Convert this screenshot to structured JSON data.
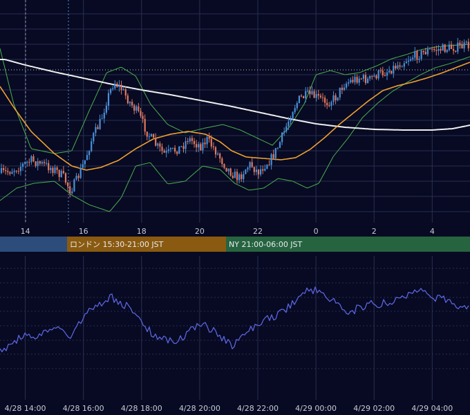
{
  "colors": {
    "background": "#070a22",
    "grid": "#2a2f52",
    "bullish_candle": "#4a8fd9",
    "bearish_candle": "#e2785e",
    "long_ma": "#f0f0f0",
    "mid_ma": "#f0a030",
    "bollinger": "#4caf50",
    "indicator_line": "#5b64e0",
    "session_asia": "#2c4d7c",
    "session_london": "#8a5a10",
    "session_ny": "#266440"
  },
  "sessions": [
    {
      "label": "",
      "color": "#2c4d7c"
    },
    {
      "label": "ロンドン 15:30-21:00 JST",
      "color": "#8a5a10"
    },
    {
      "label": "NY 21:00-06:00 JST",
      "color": "#266440"
    }
  ],
  "chart_data": [
    {
      "type": "candlestick",
      "x_tick_labels": [
        "14",
        "16",
        "18",
        "20",
        "22",
        "0",
        "2",
        "4"
      ],
      "x_ticks_hours": [
        14,
        16,
        18,
        20,
        22,
        24,
        26,
        28
      ],
      "x_range_hours": [
        13.13,
        29.3
      ],
      "y_range": [
        0,
        100
      ],
      "overlays": [
        "long moving average",
        "mid moving average",
        "bollinger bands"
      ],
      "path_anchors": [
        [
          13.3,
          250
        ],
        [
          13.8,
          241
        ],
        [
          14.2,
          232
        ],
        [
          14.7,
          239
        ],
        [
          15.0,
          245
        ],
        [
          15.3,
          255
        ],
        [
          15.55,
          275
        ],
        [
          15.75,
          262
        ],
        [
          16.05,
          232
        ],
        [
          16.3,
          200
        ],
        [
          16.6,
          175
        ],
        [
          16.8,
          145
        ],
        [
          17.05,
          118
        ],
        [
          17.3,
          128
        ],
        [
          17.6,
          148
        ],
        [
          17.9,
          165
        ],
        [
          18.2,
          192
        ],
        [
          18.5,
          210
        ],
        [
          18.8,
          223
        ],
        [
          19.1,
          218
        ],
        [
          19.4,
          212
        ],
        [
          19.6,
          200
        ],
        [
          19.85,
          207
        ],
        [
          20.05,
          211
        ],
        [
          20.25,
          202
        ],
        [
          20.5,
          215
        ],
        [
          20.7,
          228
        ],
        [
          20.9,
          241
        ],
        [
          21.1,
          250
        ],
        [
          21.35,
          258
        ],
        [
          21.55,
          245
        ],
        [
          21.75,
          237
        ],
        [
          22.0,
          249
        ],
        [
          22.25,
          238
        ],
        [
          22.45,
          230
        ],
        [
          22.7,
          212
        ],
        [
          22.95,
          186
        ],
        [
          23.2,
          158
        ],
        [
          23.45,
          142
        ],
        [
          23.75,
          137
        ],
        [
          24.05,
          141
        ],
        [
          24.4,
          148
        ],
        [
          24.7,
          140
        ],
        [
          24.95,
          122
        ],
        [
          25.2,
          117
        ],
        [
          25.5,
          112
        ],
        [
          25.8,
          116
        ],
        [
          26.1,
          108
        ],
        [
          26.4,
          104
        ],
        [
          26.7,
          97
        ],
        [
          27.0,
          89
        ],
        [
          27.3,
          82
        ],
        [
          27.55,
          79
        ],
        [
          27.8,
          74
        ],
        [
          28.1,
          72
        ],
        [
          28.5,
          70
        ],
        [
          28.9,
          68
        ],
        [
          29.2,
          66
        ]
      ],
      "long_ma_anchors": [
        [
          13.3,
          86
        ],
        [
          14.0,
          94
        ],
        [
          15.0,
          104
        ],
        [
          16.0,
          113
        ],
        [
          17.0,
          122
        ],
        [
          18.0,
          130
        ],
        [
          19.0,
          137
        ],
        [
          20.0,
          145
        ],
        [
          21.0,
          153
        ],
        [
          22.0,
          162
        ],
        [
          23.0,
          171
        ],
        [
          24.0,
          179
        ],
        [
          25.0,
          184
        ],
        [
          26.0,
          187
        ],
        [
          27.0,
          188
        ],
        [
          28.0,
          188
        ],
        [
          28.7,
          186
        ],
        [
          29.3,
          181
        ]
      ],
      "mid_ma_anchors": [
        [
          13.13,
          125
        ],
        [
          13.6,
          155
        ],
        [
          14.2,
          190
        ],
        [
          15.0,
          222
        ],
        [
          15.6,
          240
        ],
        [
          16.1,
          246
        ],
        [
          16.6,
          242
        ],
        [
          17.2,
          232
        ],
        [
          17.8,
          215
        ],
        [
          18.4,
          201
        ],
        [
          19.0,
          194
        ],
        [
          19.6,
          190
        ],
        [
          20.2,
          194
        ],
        [
          20.7,
          205
        ],
        [
          21.1,
          218
        ],
        [
          21.6,
          227
        ],
        [
          22.2,
          229
        ],
        [
          22.8,
          231
        ],
        [
          23.3,
          228
        ],
        [
          23.8,
          216
        ],
        [
          24.3,
          199
        ],
        [
          24.8,
          180
        ],
        [
          25.3,
          163
        ],
        [
          25.8,
          146
        ],
        [
          26.3,
          131
        ],
        [
          26.8,
          124
        ],
        [
          27.3,
          119
        ],
        [
          27.8,
          113
        ],
        [
          28.3,
          106
        ],
        [
          28.8,
          98
        ],
        [
          29.3,
          90
        ]
      ],
      "bollinger_upper_anchors": [
        [
          13.13,
          70
        ],
        [
          13.6,
          150
        ],
        [
          14.2,
          215
        ],
        [
          15.0,
          222
        ],
        [
          15.6,
          218
        ],
        [
          16.2,
          160
        ],
        [
          16.8,
          105
        ],
        [
          17.3,
          97
        ],
        [
          17.8,
          110
        ],
        [
          18.3,
          150
        ],
        [
          18.9,
          180
        ],
        [
          19.5,
          192
        ],
        [
          20.2,
          185
        ],
        [
          20.8,
          180
        ],
        [
          21.4,
          188
        ],
        [
          22.0,
          200
        ],
        [
          22.5,
          210
        ],
        [
          23.1,
          183
        ],
        [
          23.6,
          150
        ],
        [
          24.0,
          108
        ],
        [
          24.5,
          102
        ],
        [
          25.0,
          108
        ],
        [
          25.5,
          105
        ],
        [
          26.1,
          95
        ],
        [
          26.6,
          85
        ],
        [
          27.1,
          79
        ],
        [
          27.6,
          72
        ],
        [
          28.1,
          68
        ],
        [
          28.6,
          66
        ],
        [
          29.3,
          64
        ]
      ],
      "bollinger_lower_anchors": [
        [
          13.13,
          290
        ],
        [
          13.7,
          272
        ],
        [
          14.3,
          265
        ],
        [
          15.0,
          262
        ],
        [
          15.6,
          282
        ],
        [
          16.2,
          296
        ],
        [
          16.9,
          306
        ],
        [
          17.3,
          286
        ],
        [
          17.8,
          240
        ],
        [
          18.3,
          235
        ],
        [
          18.9,
          266
        ],
        [
          19.5,
          262
        ],
        [
          20.1,
          240
        ],
        [
          20.7,
          245
        ],
        [
          21.2,
          265
        ],
        [
          21.7,
          275
        ],
        [
          22.2,
          272
        ],
        [
          22.7,
          258
        ],
        [
          23.2,
          262
        ],
        [
          23.7,
          272
        ],
        [
          24.1,
          265
        ],
        [
          24.6,
          226
        ],
        [
          25.1,
          200
        ],
        [
          25.6,
          170
        ],
        [
          26.1,
          150
        ],
        [
          26.6,
          133
        ],
        [
          27.1,
          120
        ],
        [
          27.6,
          108
        ],
        [
          28.1,
          98
        ],
        [
          28.6,
          92
        ],
        [
          29.3,
          82
        ]
      ]
    },
    {
      "type": "line",
      "x_tick_labels": [
        "4/28 14:00",
        "4/28 16:00",
        "4/28 18:00",
        "4/28 20:00",
        "4/28 22:00",
        "4/29 00:00",
        "4/29 02:00",
        "4/29 04:00"
      ],
      "x_ticks_hours": [
        14,
        16,
        18,
        20,
        22,
        24,
        26,
        28
      ],
      "x_range_hours": [
        13.13,
        29.3
      ],
      "y_range": [
        0,
        100
      ],
      "series_anchors": [
        [
          13.13,
          510
        ],
        [
          13.6,
          492
        ],
        [
          13.9,
          487
        ],
        [
          14.4,
          485
        ],
        [
          14.9,
          480
        ],
        [
          15.3,
          472
        ],
        [
          15.6,
          492
        ],
        [
          15.8,
          470
        ],
        [
          16.1,
          455
        ],
        [
          16.4,
          443
        ],
        [
          16.7,
          437
        ],
        [
          17.0,
          430
        ],
        [
          17.25,
          438
        ],
        [
          17.5,
          442
        ],
        [
          17.8,
          455
        ],
        [
          18.1,
          470
        ],
        [
          18.35,
          483
        ],
        [
          18.6,
          488
        ],
        [
          18.9,
          492
        ],
        [
          19.2,
          493
        ],
        [
          19.5,
          485
        ],
        [
          19.8,
          475
        ],
        [
          20.05,
          468
        ],
        [
          20.3,
          475
        ],
        [
          20.6,
          482
        ],
        [
          20.9,
          492
        ],
        [
          21.1,
          500
        ],
        [
          21.4,
          490
        ],
        [
          21.7,
          475
        ],
        [
          22.0,
          470
        ],
        [
          22.3,
          462
        ],
        [
          22.6,
          458
        ],
        [
          22.9,
          450
        ],
        [
          23.2,
          438
        ],
        [
          23.5,
          425
        ],
        [
          23.75,
          420
        ],
        [
          24.0,
          420
        ],
        [
          24.3,
          428
        ],
        [
          24.6,
          436
        ],
        [
          24.9,
          445
        ],
        [
          25.2,
          450
        ],
        [
          25.5,
          445
        ],
        [
          25.8,
          440
        ],
        [
          26.1,
          440
        ],
        [
          26.4,
          437
        ],
        [
          26.7,
          435
        ],
        [
          27.0,
          430
        ],
        [
          27.3,
          422
        ],
        [
          27.55,
          418
        ],
        [
          27.8,
          422
        ],
        [
          28.1,
          430
        ],
        [
          28.4,
          433
        ],
        [
          28.7,
          438
        ],
        [
          29.0,
          445
        ],
        [
          29.3,
          440
        ]
      ]
    }
  ]
}
